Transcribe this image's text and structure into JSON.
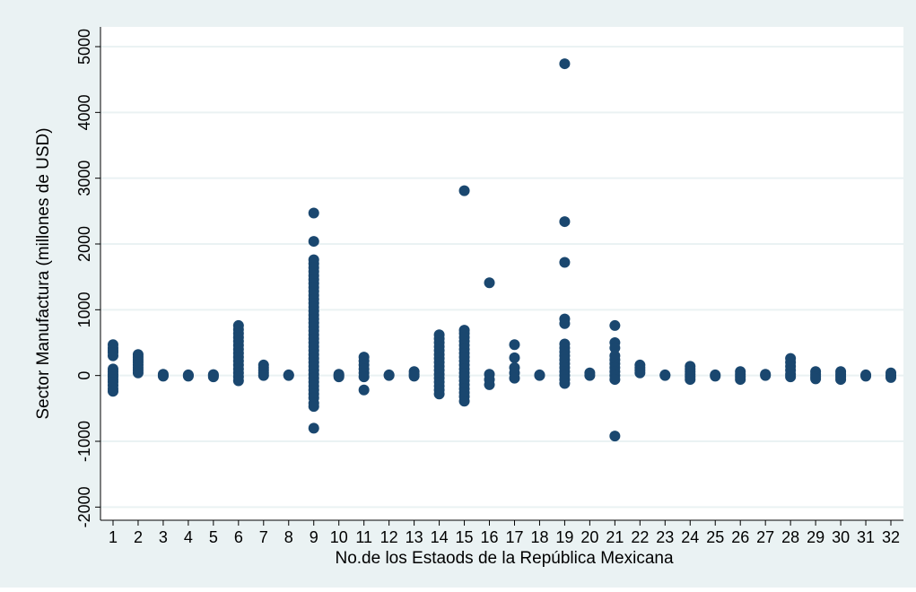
{
  "chart_data": {
    "type": "scatter",
    "title": "",
    "xlabel": "No.de los Estaods de la República Mexicana",
    "ylabel": "Sector Manufactura (millones de USD)",
    "xlim": [
      0.5,
      32.5
    ],
    "ylim": [
      -2200,
      5300
    ],
    "grid": true,
    "legend": "none",
    "x_ticks": [
      1,
      2,
      3,
      4,
      5,
      6,
      7,
      8,
      9,
      10,
      11,
      12,
      13,
      14,
      15,
      16,
      17,
      18,
      19,
      20,
      21,
      22,
      23,
      24,
      25,
      26,
      27,
      28,
      29,
      30,
      31,
      32
    ],
    "x_tick_labels": [
      "1",
      "2",
      "3",
      "4",
      "5",
      "6",
      "7",
      "8",
      "9",
      "10",
      "11",
      "12",
      "13",
      "14",
      "15",
      "16",
      "17",
      "18",
      "19",
      "20",
      "21",
      "22",
      "23",
      "24",
      "25",
      "26",
      "27",
      "28",
      "29",
      "30",
      "31",
      "32"
    ],
    "y_ticks": [
      -2000,
      -1000,
      0,
      1000,
      2000,
      3000,
      4000,
      5000
    ],
    "y_tick_labels": [
      "-2000",
      "-1000",
      "0",
      "1000",
      "2000",
      "3000",
      "4000",
      "5000"
    ],
    "colors": {
      "marker": "#1a476f",
      "plot_region": "#ffffff",
      "graph_region": "#eaf2f3",
      "grid": "#eaf2f3"
    },
    "points": {
      "1": [
        470,
        420,
        380,
        350,
        300,
        100,
        60,
        20,
        -20,
        -60,
        -100,
        -150,
        -200,
        -240
      ],
      "2": [
        320,
        280,
        240,
        200,
        160,
        120,
        80,
        40
      ],
      "3": [
        20,
        0,
        -10
      ],
      "4": [
        10,
        0,
        -10
      ],
      "5": [
        15,
        0,
        -20
      ],
      "6": [
        760,
        700,
        640,
        580,
        520,
        460,
        400,
        340,
        280,
        220,
        160,
        100,
        40,
        -20,
        -80
      ],
      "7": [
        160,
        120,
        80,
        40,
        0
      ],
      "8": [
        10,
        0
      ],
      "9": [
        2470,
        2040,
        1760,
        1700,
        1640,
        1580,
        1520,
        1460,
        1400,
        1340,
        1280,
        1220,
        1160,
        1100,
        1040,
        980,
        920,
        860,
        800,
        740,
        680,
        620,
        560,
        500,
        440,
        380,
        320,
        260,
        200,
        140,
        80,
        20,
        -40,
        -100,
        -160,
        -220,
        -280,
        -340,
        -420,
        -470,
        -800
      ],
      "10": [
        20,
        0,
        -20
      ],
      "11": [
        280,
        220,
        160,
        100,
        40,
        -20,
        -220
      ],
      "12": [
        10,
        0
      ],
      "13": [
        60,
        20,
        -10
      ],
      "14": [
        620,
        560,
        500,
        440,
        380,
        320,
        260,
        200,
        140,
        80,
        20,
        -40,
        -100,
        -160,
        -220,
        -280
      ],
      "15": [
        2810,
        690,
        640,
        580,
        520,
        460,
        400,
        340,
        280,
        220,
        160,
        100,
        40,
        -20,
        -80,
        -140,
        -200,
        -260,
        -320,
        -390
      ],
      "16": [
        1410,
        20,
        -60,
        -140
      ],
      "17": [
        470,
        270,
        120,
        40,
        -40
      ],
      "18": [
        10,
        0
      ],
      "19": [
        4740,
        2340,
        1720,
        860,
        790,
        480,
        420,
        360,
        300,
        240,
        180,
        120,
        60,
        0,
        -60,
        -120
      ],
      "20": [
        40,
        0
      ],
      "21": [
        760,
        500,
        420,
        300,
        240,
        180,
        120,
        60,
        0,
        -60,
        -920
      ],
      "22": [
        160,
        120,
        80,
        40
      ],
      "23": [
        10,
        0
      ],
      "24": [
        140,
        100,
        60,
        20,
        -20,
        -60
      ],
      "25": [
        10,
        -10
      ],
      "26": [
        60,
        20,
        -20,
        -60
      ],
      "27": [
        20,
        0
      ],
      "28": [
        260,
        200,
        140,
        80,
        20,
        -20
      ],
      "29": [
        60,
        20,
        -20,
        -50
      ],
      "30": [
        60,
        20,
        -20,
        -60
      ],
      "31": [
        10,
        -10
      ],
      "32": [
        40,
        0,
        -30
      ]
    }
  }
}
